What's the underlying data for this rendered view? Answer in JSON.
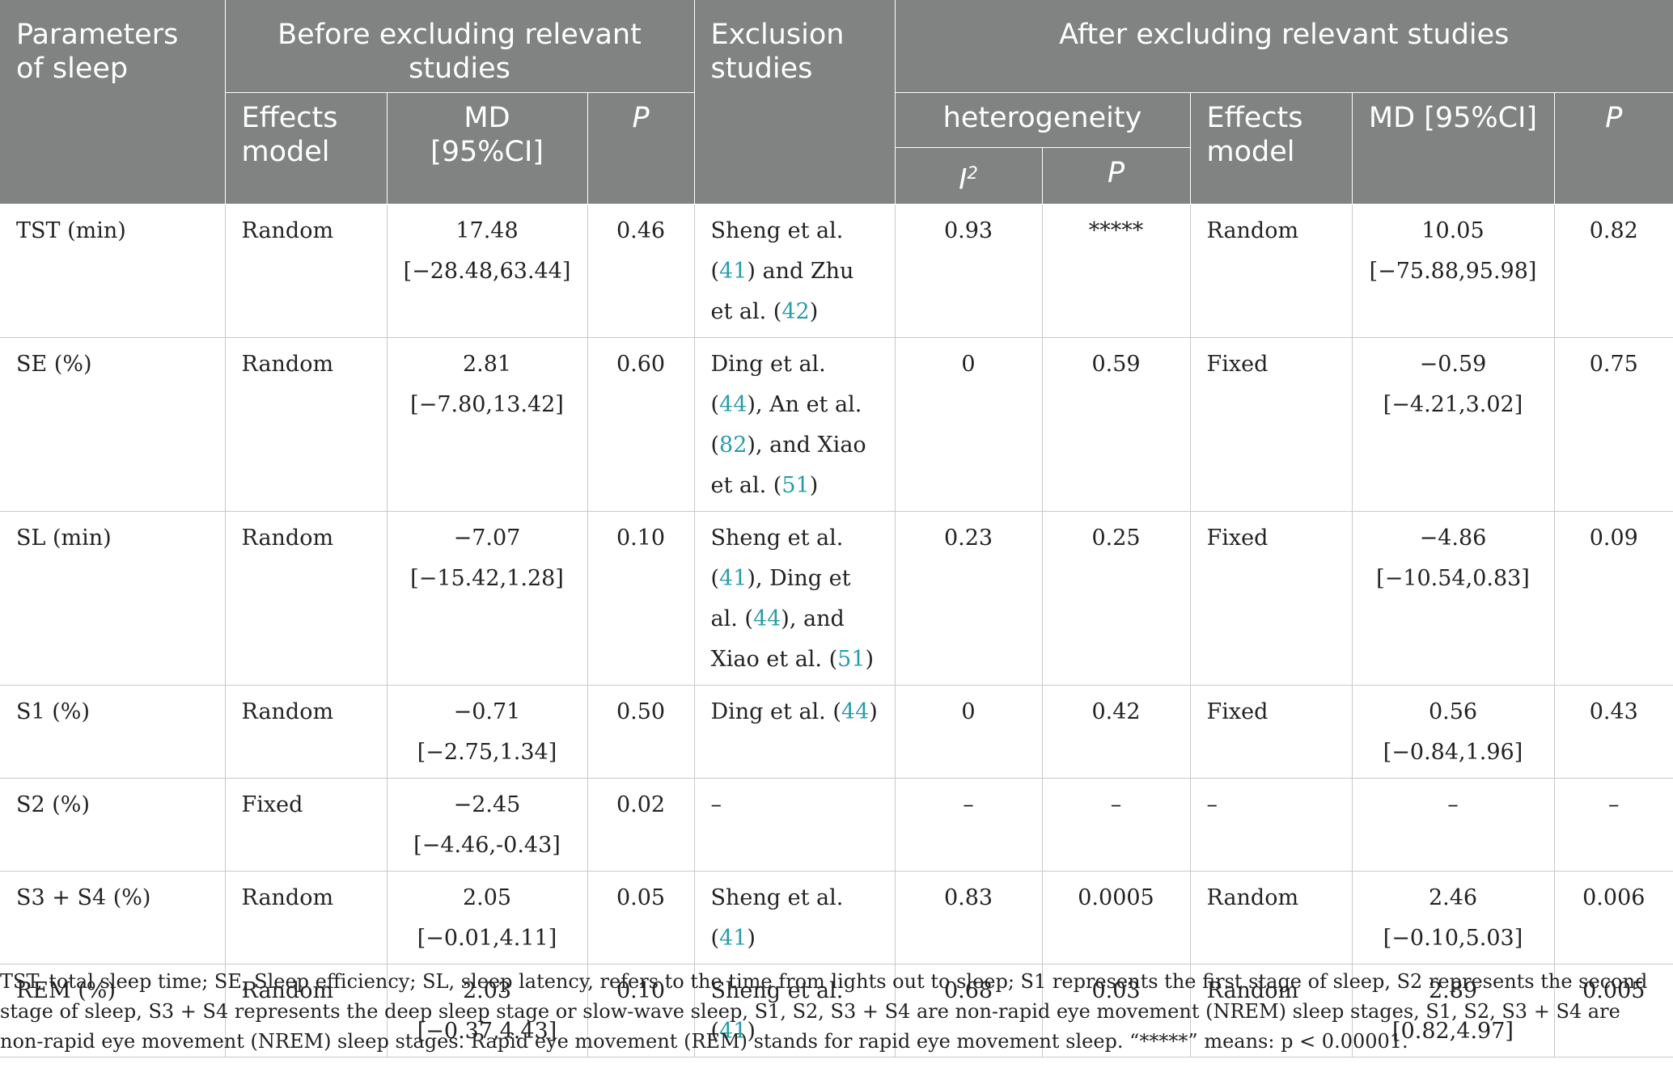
{
  "header": {
    "parameters": "Parameters of sleep",
    "before": "Before excluding relevant studies",
    "exclusion": "Exclusion studies",
    "after": "After excluding relevant studies",
    "effects_model": "Effects model",
    "md_ci": "MD [95%CI]",
    "p": "P",
    "heterogeneity": "heterogeneity",
    "i": "I",
    "i_sup": "2"
  },
  "rows": [
    {
      "param": "TST (min)",
      "model1": "Random",
      "md1": "17.48 [−28.48,63.44]",
      "p1": "0.46",
      "excl": [
        {
          "t": "Sheng et al. ("
        },
        {
          "r": "41"
        },
        {
          "t": ") and Zhu et al. ("
        },
        {
          "r": "42"
        },
        {
          "t": ")"
        }
      ],
      "i2": "0.93",
      "ph": "*****",
      "model2": "Random",
      "md2": "10.05 [−75.88,95.98]",
      "p2": "0.82"
    },
    {
      "param": "SE (%)",
      "model1": "Random",
      "md1": "2.81 [−7.80,13.42]",
      "p1": "0.60",
      "excl": [
        {
          "t": "Ding et al. ("
        },
        {
          "r": "44"
        },
        {
          "t": "), An et al. ("
        },
        {
          "r": "82"
        },
        {
          "t": "), and Xiao et al. ("
        },
        {
          "r": "51"
        },
        {
          "t": ")"
        }
      ],
      "i2": "0",
      "ph": "0.59",
      "model2": "Fixed",
      "md2": "−0.59 [−4.21,3.02]",
      "p2": "0.75"
    },
    {
      "param": "SL (min)",
      "model1": "Random",
      "md1": "−7.07 [−15.42,1.28]",
      "p1": "0.10",
      "excl": [
        {
          "t": "Sheng et al. ("
        },
        {
          "r": "41"
        },
        {
          "t": "), Ding et al. ("
        },
        {
          "r": "44"
        },
        {
          "t": "), and Xiao et al. ("
        },
        {
          "r": "51"
        },
        {
          "t": ")"
        }
      ],
      "i2": "0.23",
      "ph": "0.25",
      "model2": "Fixed",
      "md2": "−4.86 [−10.54,0.83]",
      "p2": "0.09"
    },
    {
      "param": "S1 (%)",
      "model1": "Random",
      "md1": "−0.71 [−2.75,1.34]",
      "p1": "0.50",
      "excl": [
        {
          "t": "Ding et al. ("
        },
        {
          "r": "44"
        },
        {
          "t": ")"
        }
      ],
      "i2": "0",
      "ph": "0.42",
      "model2": "Fixed",
      "md2": "0.56 [−0.84,1.96]",
      "p2": "0.43"
    },
    {
      "param": "S2 (%)",
      "model1": "Fixed",
      "md1": "−2.45 [−4.46,-0.43]",
      "p1": "0.02",
      "excl": [
        {
          "t": "–"
        }
      ],
      "i2": "–",
      "ph": "–",
      "model2": "–",
      "md2": "–",
      "p2": "–"
    },
    {
      "param": "S3 + S4 (%)",
      "model1": "Random",
      "md1": "2.05 [−0.01,4.11]",
      "p1": "0.05",
      "excl": [
        {
          "t": "Sheng et al. ("
        },
        {
          "r": "41"
        },
        {
          "t": ")"
        }
      ],
      "i2": "0.83",
      "ph": "0.0005",
      "model2": "Random",
      "md2": "2.46 [−0.10,5.03]",
      "p2": "0.006"
    },
    {
      "param": "REM (%)",
      "model1": "Random",
      "md1": "2.03 [−0.37,4.43]",
      "p1": "0.10",
      "excl": [
        {
          "t": "Sheng et al. ("
        },
        {
          "r": "41"
        },
        {
          "t": ")"
        }
      ],
      "i2": "0.68",
      "ph": "0.03",
      "model2": "Random",
      "md2": "2.89 [0.82,4.97]",
      "p2": "0.005"
    }
  ],
  "footnote": "TST, total sleep time; SE, Sleep efficiency; SL, sleep latency, refers to the time from lights out to sleep; S1 represents the first stage of sleep, S2 represents the second stage of sleep, S3 + S4 represents the deep sleep stage or slow-wave sleep, S1, S2, S3 + S4 are non-rapid eye movement (NREM) sleep stages, S1, S2, S3 + S4 are non-rapid eye movement (NREM) sleep stages. Rapid eye movement (REM) stands for rapid eye movement sleep. “*****” means: p < 0.00001.",
  "colors": {
    "header_bg": "#808382",
    "ref_link": "#2a9ca8"
  }
}
